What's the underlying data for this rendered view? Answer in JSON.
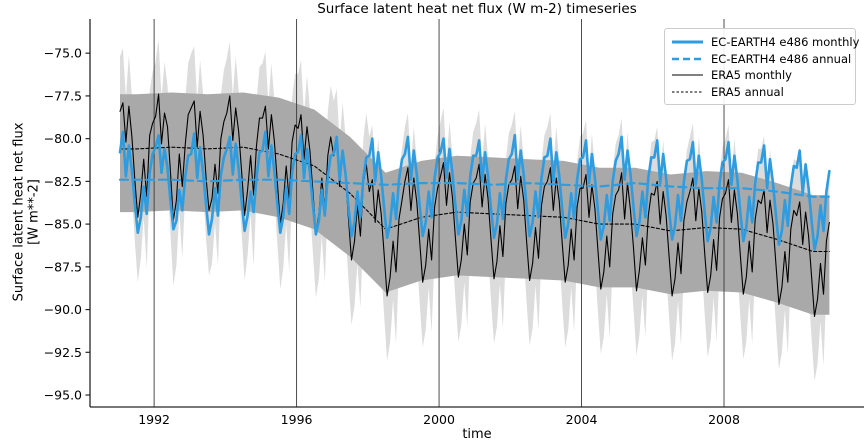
{
  "title": "Surface latent heat net flux (W m-2) timeseries",
  "axes": {
    "x_label": "time",
    "y_label_line1": "Surface latent heat net flux",
    "y_label_line2": "[W m**-2]",
    "x_ticks": [
      1992,
      1996,
      2000,
      2004,
      2008
    ],
    "y_ticks": [
      -75.0,
      -77.5,
      -80.0,
      -82.5,
      -85.0,
      -87.5,
      -90.0,
      -92.5,
      -95.0
    ],
    "xlim": [
      1990.2,
      2011.93
    ],
    "ylim": [
      -95.7,
      -73.0
    ],
    "grid": "vertical-only"
  },
  "colors": {
    "ec_blue": "#2f9ce0",
    "era5_black": "#000000",
    "band_light": "#dcdcdc",
    "band_dark": "#a9a9a9",
    "grid": "#3a3a3a",
    "spine": "#262626"
  },
  "legend": {
    "position": "upper-right",
    "items": [
      {
        "label": "EC-EARTH4 e486 monthly",
        "color": "#2f9ce0",
        "dash": "",
        "width": 3
      },
      {
        "label": "EC-EARTH4 e486 annual",
        "color": "#2f9ce0",
        "dash": "7 4",
        "width": 2.4
      },
      {
        "label": "ERA5 monthly",
        "color": "#000000",
        "dash": "",
        "width": 1.1
      },
      {
        "label": "ERA5 annual",
        "color": "#000000",
        "dash": "2.5 2",
        "width": 1.1
      }
    ]
  },
  "chart_data": {
    "type": "line",
    "title": "Surface latent heat net flux (W m-2) timeseries",
    "xlabel": "time",
    "ylabel": "Surface latent heat net flux [W m**-2]",
    "x_monthly_start_year": 1991.0,
    "months_per_year": 12,
    "years": [
      1991,
      1992,
      1993,
      1994,
      1995,
      1996,
      1997,
      1998,
      1999,
      2000,
      2001,
      2002,
      2003,
      2004,
      2005,
      2006,
      2007,
      2008,
      2009,
      2010
    ],
    "series": [
      {
        "name": "EC-EARTH4 e486 monthly",
        "cadence": "monthly",
        "style": "solid",
        "color": "#2f9ce0",
        "width": 2.6,
        "values": [
          -80.8,
          -79.6,
          -82.2,
          -80.4,
          -81.9,
          -83.8,
          -85.5,
          -84.6,
          -82.8,
          -84.4,
          -82.0,
          -80.9,
          -80.5,
          -79.8,
          -82.0,
          -80.6,
          -81.7,
          -83.6,
          -85.3,
          -84.8,
          -83.0,
          -84.2,
          -82.2,
          -81.0,
          -80.9,
          -79.7,
          -82.3,
          -80.5,
          -82.0,
          -83.9,
          -85.6,
          -84.7,
          -82.9,
          -84.5,
          -82.1,
          -81.1,
          -80.6,
          -79.9,
          -82.1,
          -80.3,
          -81.8,
          -83.7,
          -85.4,
          -84.5,
          -83.1,
          -84.3,
          -82.3,
          -80.8,
          -80.7,
          -79.6,
          -82.2,
          -80.4,
          -81.9,
          -83.8,
          -85.5,
          -84.6,
          -82.8,
          -84.4,
          -82.0,
          -80.9,
          -80.8,
          -79.8,
          -82.3,
          -80.6,
          -82.0,
          -83.9,
          -85.6,
          -84.8,
          -83.0,
          -84.5,
          -82.2,
          -81.0,
          -80.9,
          -79.9,
          -82.4,
          -80.7,
          -82.1,
          -84.0,
          -85.7,
          -84.9,
          -83.1,
          -84.6,
          -82.3,
          -81.1,
          -81.0,
          -80.0,
          -82.5,
          -80.8,
          -82.2,
          -84.1,
          -85.8,
          -85.0,
          -83.2,
          -84.7,
          -82.4,
          -81.2,
          -80.9,
          -79.9,
          -82.4,
          -80.7,
          -82.1,
          -84.0,
          -85.7,
          -84.9,
          -83.1,
          -84.6,
          -82.3,
          -81.1,
          -80.8,
          -80.0,
          -82.3,
          -80.6,
          -82.0,
          -83.9,
          -85.6,
          -84.8,
          -83.0,
          -84.5,
          -82.2,
          -81.0,
          -81.0,
          -80.1,
          -82.5,
          -80.8,
          -82.2,
          -84.1,
          -85.8,
          -85.0,
          -83.2,
          -84.7,
          -82.4,
          -81.2,
          -80.9,
          -79.8,
          -82.4,
          -80.7,
          -82.1,
          -84.0,
          -85.7,
          -84.9,
          -83.1,
          -84.6,
          -82.3,
          -81.1,
          -81.0,
          -80.0,
          -82.5,
          -80.8,
          -82.2,
          -84.1,
          -85.8,
          -85.0,
          -83.2,
          -84.7,
          -82.4,
          -81.2,
          -81.1,
          -80.1,
          -82.6,
          -80.9,
          -82.3,
          -84.2,
          -85.9,
          -85.1,
          -83.3,
          -84.8,
          -82.5,
          -81.3,
          -80.9,
          -79.9,
          -82.4,
          -80.7,
          -82.1,
          -84.0,
          -85.7,
          -84.9,
          -83.1,
          -84.6,
          -82.3,
          -81.1,
          -81.1,
          -80.1,
          -82.6,
          -80.9,
          -82.3,
          -84.2,
          -85.9,
          -85.1,
          -83.3,
          -84.8,
          -82.5,
          -81.3,
          -81.2,
          -80.2,
          -82.7,
          -81.0,
          -82.4,
          -84.3,
          -86.0,
          -85.2,
          -83.4,
          -84.9,
          -82.6,
          -81.4,
          -81.2,
          -80.2,
          -82.7,
          -81.0,
          -82.4,
          -84.3,
          -86.0,
          -85.2,
          -83.4,
          -84.9,
          -82.6,
          -81.4,
          -81.4,
          -80.4,
          -82.9,
          -81.2,
          -82.6,
          -84.5,
          -86.2,
          -85.4,
          -83.6,
          -85.1,
          -82.8,
          -81.6,
          -81.7,
          -80.7,
          -83.2,
          -81.5,
          -82.9,
          -84.8,
          -86.5,
          -85.7,
          -83.9,
          -85.4,
          -83.1,
          -81.9
        ]
      },
      {
        "name": "EC-EARTH4 e486 annual",
        "cadence": "annual",
        "style": "dashed",
        "color": "#2f9ce0",
        "width": 2.2,
        "values": [
          -82.4,
          -82.4,
          -82.5,
          -82.4,
          -82.4,
          -82.5,
          -82.6,
          -82.7,
          -82.6,
          -82.6,
          -82.7,
          -82.6,
          -82.7,
          -82.8,
          -82.6,
          -82.8,
          -82.9,
          -82.9,
          -83.1,
          -83.4
        ]
      },
      {
        "name": "ERA5 monthly",
        "cadence": "monthly",
        "style": "solid",
        "color": "#000000",
        "width": 1.1,
        "values": [
          -78.4,
          -77.9,
          -80.2,
          -78.1,
          -79.9,
          -82.4,
          -84.6,
          -83.2,
          -81.2,
          -83.4,
          -79.8,
          -79.1,
          -78.7,
          -77.4,
          -80.3,
          -78.5,
          -79.3,
          -81.9,
          -84.8,
          -83.6,
          -80.9,
          -82.8,
          -80.3,
          -78.6,
          -78.2,
          -77.8,
          -80.5,
          -78.4,
          -79.8,
          -82.3,
          -84.2,
          -83.5,
          -81.5,
          -83.2,
          -80.0,
          -79.0,
          -78.5,
          -77.5,
          -80.1,
          -78.2,
          -79.6,
          -82.0,
          -84.5,
          -83.0,
          -81.0,
          -83.3,
          -80.4,
          -78.8,
          -78.8,
          -78.1,
          -80.6,
          -78.6,
          -80.1,
          -82.5,
          -85.0,
          -83.8,
          -81.6,
          -83.6,
          -80.2,
          -79.2,
          -79.4,
          -78.6,
          -81.2,
          -79.3,
          -80.7,
          -83.1,
          -85.5,
          -84.4,
          -82.3,
          -84.2,
          -81.0,
          -79.9,
          -81.0,
          -80.3,
          -82.8,
          -80.9,
          -82.3,
          -84.7,
          -87.1,
          -86.0,
          -83.9,
          -85.7,
          -82.6,
          -81.5,
          -83.1,
          -82.4,
          -84.9,
          -83.0,
          -84.4,
          -86.8,
          -89.2,
          -88.1,
          -86.0,
          -87.8,
          -84.7,
          -83.6,
          -82.5,
          -81.7,
          -84.2,
          -82.3,
          -83.7,
          -86.1,
          -88.4,
          -87.4,
          -85.3,
          -87.1,
          -84.0,
          -82.9,
          -82.2,
          -81.4,
          -83.9,
          -82.0,
          -83.4,
          -85.8,
          -88.1,
          -87.1,
          -85.0,
          -86.8,
          -83.7,
          -82.6,
          -82.3,
          -81.5,
          -84.0,
          -82.1,
          -83.5,
          -85.9,
          -88.2,
          -87.2,
          -85.1,
          -86.9,
          -83.8,
          -82.7,
          -82.4,
          -81.6,
          -84.1,
          -82.2,
          -83.6,
          -86.0,
          -88.3,
          -87.3,
          -85.2,
          -87.0,
          -83.9,
          -82.8,
          -82.5,
          -81.7,
          -84.2,
          -82.3,
          -83.7,
          -86.1,
          -88.4,
          -87.4,
          -85.3,
          -87.1,
          -84.0,
          -82.9,
          -82.9,
          -82.1,
          -84.6,
          -82.7,
          -84.1,
          -86.5,
          -88.8,
          -87.8,
          -85.7,
          -87.5,
          -84.4,
          -83.3,
          -83.0,
          -82.0,
          -84.7,
          -82.6,
          -84.2,
          -86.4,
          -88.9,
          -87.7,
          -85.8,
          -87.4,
          -84.5,
          -83.2,
          -83.3,
          -82.5,
          -85.0,
          -83.1,
          -84.5,
          -86.9,
          -89.2,
          -88.2,
          -86.1,
          -87.9,
          -84.8,
          -83.7,
          -83.1,
          -82.3,
          -84.8,
          -82.9,
          -84.3,
          -86.7,
          -89.0,
          -88.0,
          -85.9,
          -87.7,
          -84.6,
          -83.5,
          -83.2,
          -82.4,
          -84.9,
          -83.0,
          -84.4,
          -86.8,
          -89.1,
          -88.1,
          -86.0,
          -87.8,
          -84.7,
          -83.6,
          -83.8,
          -83.0,
          -85.5,
          -83.6,
          -85.0,
          -87.4,
          -89.7,
          -88.7,
          -86.6,
          -88.4,
          -85.3,
          -84.2,
          -84.5,
          -83.7,
          -86.2,
          -84.3,
          -85.7,
          -88.1,
          -90.4,
          -89.4,
          -87.3,
          -89.1,
          -86.0,
          -84.9
        ]
      },
      {
        "name": "ERA5 annual",
        "cadence": "annual",
        "style": "dashed-fine",
        "color": "#000000",
        "width": 1.1,
        "values": [
          -80.6,
          -80.5,
          -80.6,
          -80.5,
          -80.9,
          -81.6,
          -83.2,
          -85.3,
          -84.6,
          -84.3,
          -84.4,
          -84.5,
          -84.6,
          -85.0,
          -85.0,
          -85.4,
          -85.2,
          -85.3,
          -85.9,
          -86.6
        ]
      }
    ],
    "bands": [
      {
        "name": "era5-annual-spread",
        "cadence": "annual",
        "fill": "#a9a9a9",
        "upper": [
          -77.4,
          -77.3,
          -77.4,
          -77.3,
          -77.6,
          -78.3,
          -79.9,
          -82.0,
          -81.3,
          -81.0,
          -81.1,
          -81.2,
          -81.3,
          -81.7,
          -81.7,
          -82.1,
          -81.9,
          -82.0,
          -82.6,
          -83.3
        ],
        "lower": [
          -84.3,
          -84.2,
          -84.3,
          -84.2,
          -84.6,
          -85.3,
          -86.9,
          -89.0,
          -88.3,
          -88.0,
          -88.1,
          -88.2,
          -88.3,
          -88.7,
          -88.7,
          -89.1,
          -88.9,
          -89.0,
          -89.6,
          -90.3
        ]
      },
      {
        "name": "era5-monthly-minmax-spread",
        "cadence": "monthly-offset",
        "fill": "#dcdcdc",
        "relative_to": "ERA5 monthly",
        "upper_offset_by_month": [
          3.2,
          3.2,
          2.6,
          3.0,
          2.4,
          1.8,
          1.4,
          1.4,
          1.8,
          1.6,
          2.6,
          3.0
        ],
        "lower_offset_by_month": [
          2.2,
          2.2,
          2.8,
          2.8,
          3.2,
          3.6,
          3.8,
          3.8,
          3.4,
          4.2,
          2.8,
          2.4
        ]
      }
    ]
  }
}
